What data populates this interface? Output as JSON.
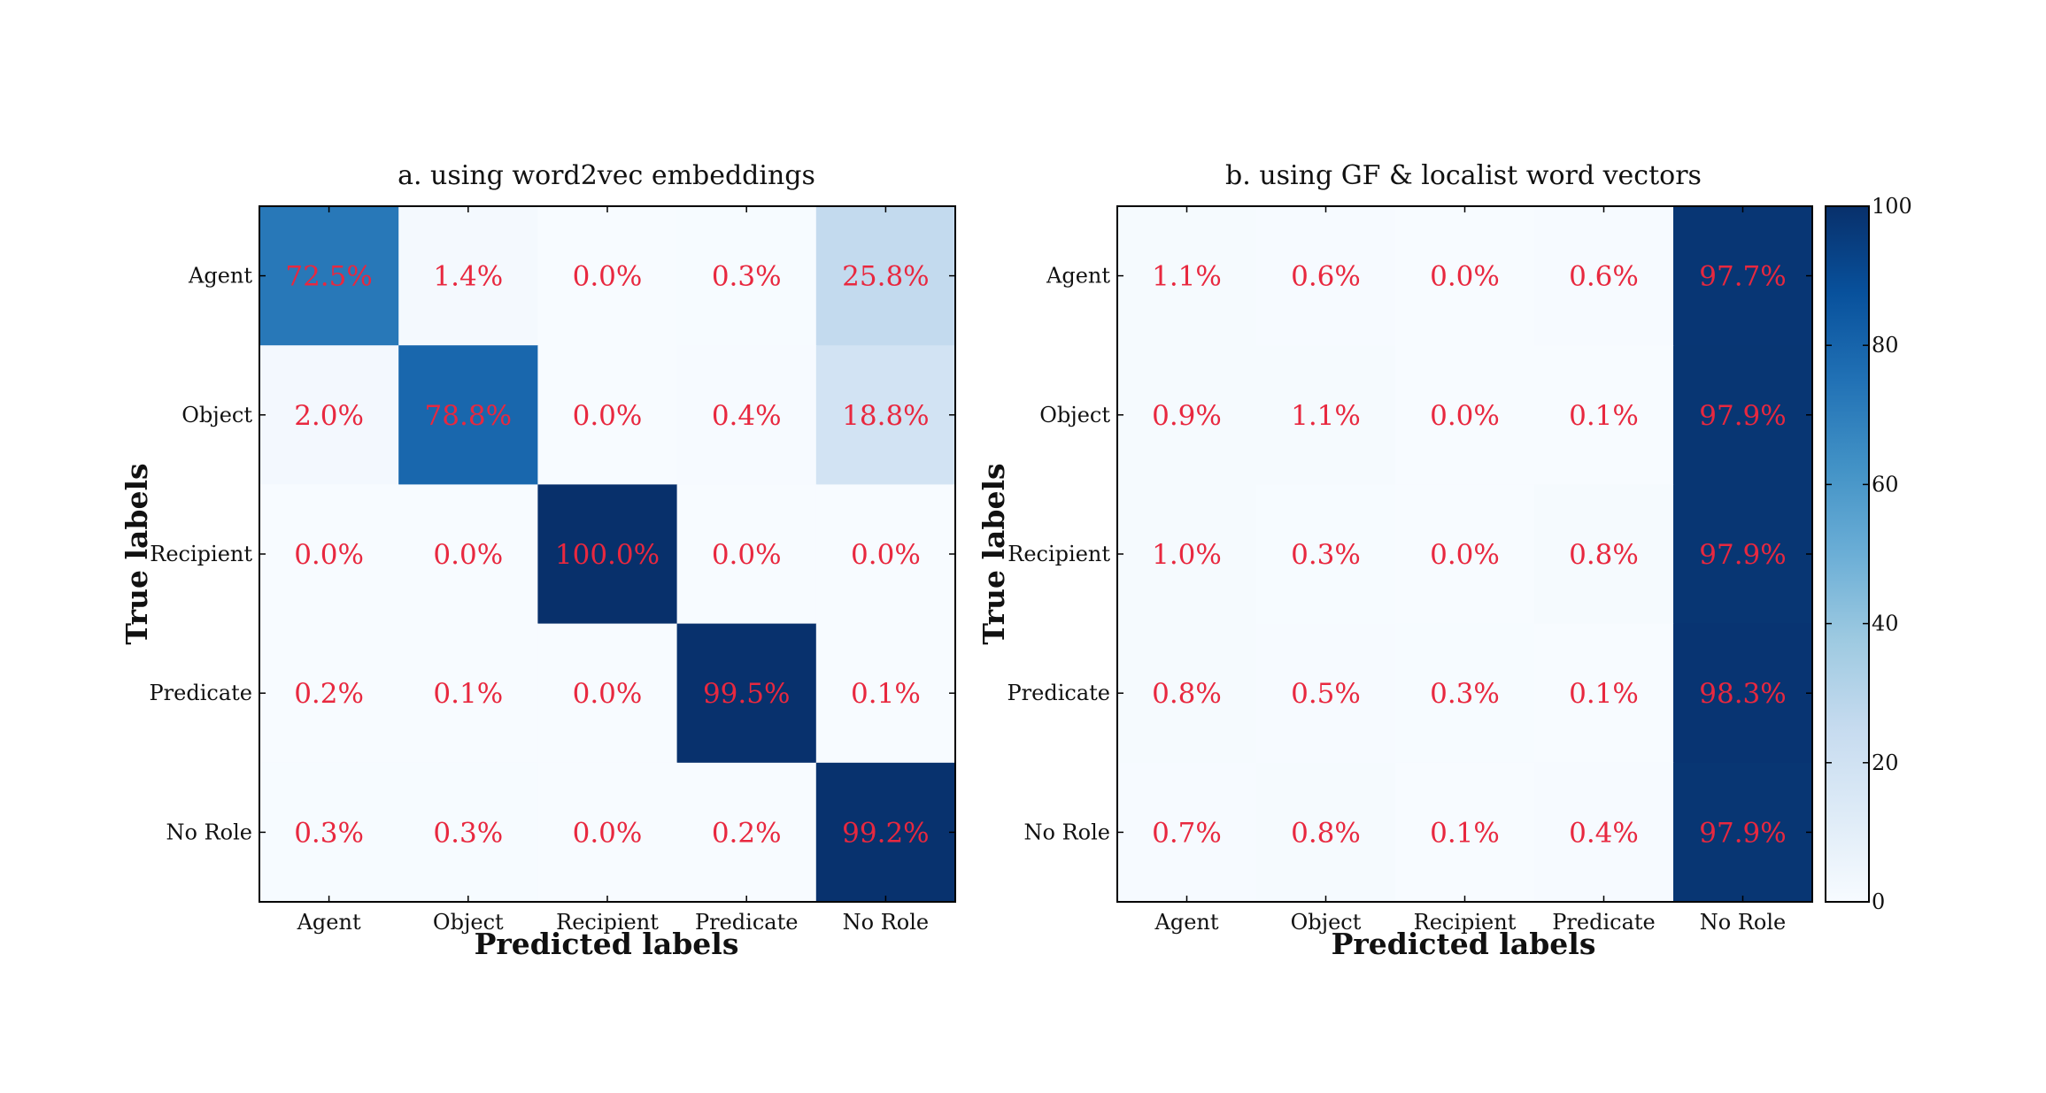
{
  "chart_data": [
    {
      "type": "heatmap",
      "title": "a. using word2vec embeddings",
      "xlabel": "Predicted labels",
      "ylabel": "True labels",
      "x_categories": [
        "Agent",
        "Object",
        "Recipient",
        "Predicate",
        "No Role"
      ],
      "y_categories": [
        "Agent",
        "Object",
        "Recipient",
        "Predicate",
        "No Role"
      ],
      "values": [
        [
          72.5,
          1.4,
          0.0,
          0.3,
          25.8
        ],
        [
          2.0,
          78.8,
          0.0,
          0.4,
          18.8
        ],
        [
          0.0,
          0.0,
          100.0,
          0.0,
          0.0
        ],
        [
          0.2,
          0.1,
          0.0,
          99.5,
          0.1
        ],
        [
          0.3,
          0.3,
          0.0,
          0.2,
          99.2
        ]
      ],
      "value_labels": [
        [
          "72.5%",
          "1.4%",
          "0.0%",
          "0.3%",
          "25.8%"
        ],
        [
          "2.0%",
          "78.8%",
          "0.0%",
          "0.4%",
          "18.8%"
        ],
        [
          "0.0%",
          "0.0%",
          "100.0%",
          "0.0%",
          "0.0%"
        ],
        [
          "0.2%",
          "0.1%",
          "0.0%",
          "99.5%",
          "0.1%"
        ],
        [
          "0.3%",
          "0.3%",
          "0.0%",
          "0.2%",
          "99.2%"
        ]
      ],
      "colorscale": "Blues",
      "vmin": 0,
      "vmax": 100,
      "annotation_color": "#e8283f"
    },
    {
      "type": "heatmap",
      "title": "b. using GF & localist word vectors",
      "xlabel": "Predicted labels",
      "ylabel": "True labels",
      "x_categories": [
        "Agent",
        "Object",
        "Recipient",
        "Predicate",
        "No Role"
      ],
      "y_categories": [
        "Agent",
        "Object",
        "Recipient",
        "Predicate",
        "No Role"
      ],
      "values": [
        [
          1.1,
          0.6,
          0.0,
          0.6,
          97.7
        ],
        [
          0.9,
          1.1,
          0.0,
          0.1,
          97.9
        ],
        [
          1.0,
          0.3,
          0.0,
          0.8,
          97.9
        ],
        [
          0.8,
          0.5,
          0.3,
          0.1,
          98.3
        ],
        [
          0.7,
          0.8,
          0.1,
          0.4,
          97.9
        ]
      ],
      "value_labels": [
        [
          "1.1%",
          "0.6%",
          "0.0%",
          "0.6%",
          "97.7%"
        ],
        [
          "0.9%",
          "1.1%",
          "0.0%",
          "0.1%",
          "97.9%"
        ],
        [
          "1.0%",
          "0.3%",
          "0.0%",
          "0.8%",
          "97.9%"
        ],
        [
          "0.8%",
          "0.5%",
          "0.3%",
          "0.1%",
          "98.3%"
        ],
        [
          "0.7%",
          "0.8%",
          "0.1%",
          "0.4%",
          "97.9%"
        ]
      ],
      "colorscale": "Blues",
      "vmin": 0,
      "vmax": 100,
      "annotation_color": "#e8283f"
    }
  ],
  "colorbar": {
    "ticks": [
      "0",
      "20",
      "40",
      "60",
      "80",
      "100"
    ],
    "tick_values": [
      0,
      20,
      40,
      60,
      80,
      100
    ],
    "vmin": 0,
    "vmax": 100
  }
}
